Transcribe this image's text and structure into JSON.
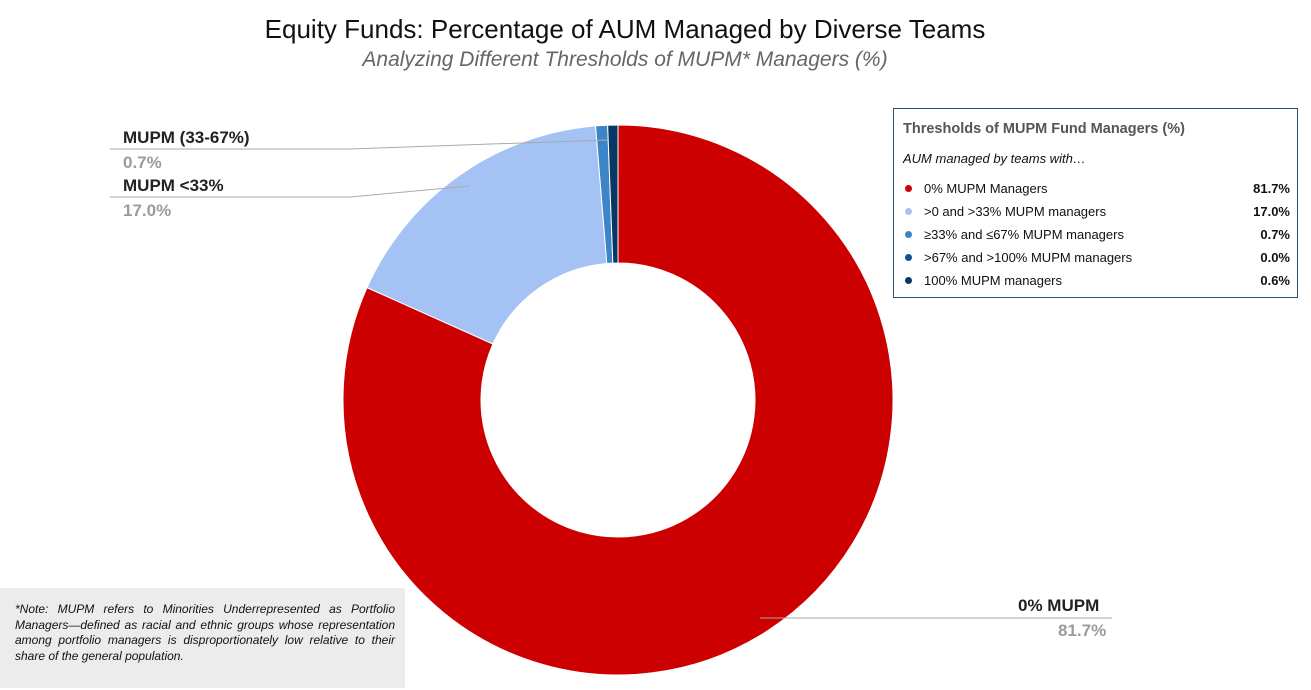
{
  "title": "Equity Funds: Percentage of AUM Managed by Diverse Teams",
  "subtitle": "Analyzing Different Thresholds of MUPM* Managers (%)",
  "chart_data": {
    "type": "pie",
    "donut": true,
    "slices": [
      {
        "label": "0% MUPM Managers",
        "value": 81.7,
        "color": "#cc0000"
      },
      {
        "label": ">0 and >33% MUPM managers",
        "value": 17.0,
        "color": "#a4c2f4"
      },
      {
        "label": "≥33% and ≤67% MUPM managers",
        "value": 0.7,
        "color": "#3d85c6"
      },
      {
        "label": ">67% and >100%  MUPM managers",
        "value": 0.0,
        "color": "#0b5394"
      },
      {
        "label": "100% MUPM managers",
        "value": 0.6,
        "color": "#073763"
      }
    ],
    "legend_position": "top-right"
  },
  "legend": {
    "title": "Thresholds of MUPM Fund Managers (%)",
    "subtitle": "AUM managed by teams with…",
    "items": [
      {
        "label": "0% MUPM Managers",
        "value": "81.7%",
        "color": "#cc0000"
      },
      {
        "label": ">0 and >33% MUPM managers",
        "value": "17.0%",
        "color": "#a4c2f4"
      },
      {
        "label": "≥33% and ≤67% MUPM managers",
        "value": "0.7%",
        "color": "#3d85c6"
      },
      {
        "label": ">67% and >100%  MUPM managers",
        "value": "0.0%",
        "color": "#0b5394"
      },
      {
        "label": "100% MUPM managers",
        "value": "0.6%",
        "color": "#073763"
      }
    ]
  },
  "callouts": {
    "mid": {
      "label": "MUPM (33-67%)",
      "value": "0.7%"
    },
    "low": {
      "label": "MUPM <33%",
      "value": "17.0%"
    },
    "zero": {
      "label": "0% MUPM",
      "value": "81.7%"
    }
  },
  "note": "*Note: MUPM refers to Minorities Underrepresented as Portfolio Managers—defined as racial and ethnic groups whose representation among portfolio managers is disproportionately low relative to their share of the general population."
}
